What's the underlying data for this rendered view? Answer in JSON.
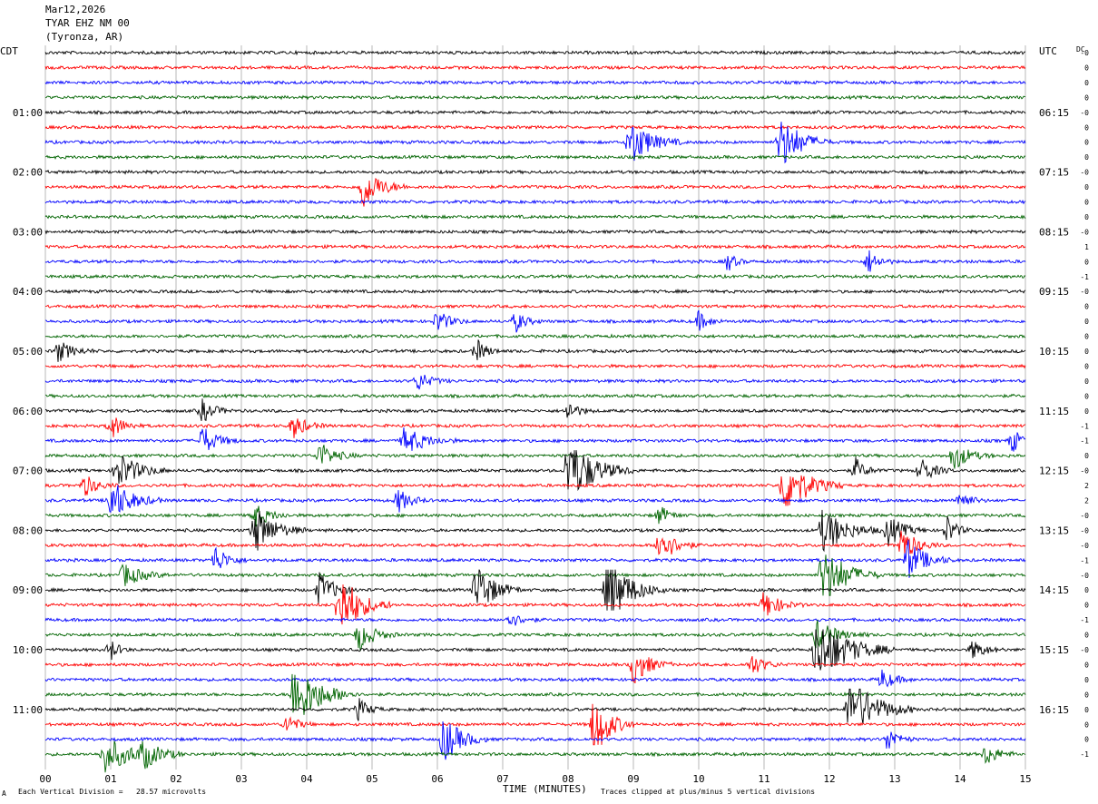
{
  "header": {
    "date": "Mar12,2026",
    "station": "TYAR EHZ NM 00",
    "location": "(Tyronza, AR)"
  },
  "left_timezone": "CDT",
  "right_timezone": "UTC",
  "dc_label": "DC",
  "footer": {
    "scale_note": "Each Vertical Division =   28.57 microvolts",
    "x_axis_title": "TIME (MINUTES)",
    "clip_note": "Traces clipped at plus/minus 5 vertical divisions",
    "corner_mark": "A"
  },
  "colors": {
    "trace_cycle": [
      "#000000",
      "#ff0000",
      "#0000ff",
      "#006400"
    ],
    "grid": "#888888",
    "background": "#ffffff"
  },
  "chart_data": {
    "type": "line",
    "title": "TYAR EHZ NM 00 (Tyronza, AR)",
    "xlabel": "TIME (MINUTES)",
    "xlim": [
      0,
      15
    ],
    "x_ticks": [
      "00",
      "01",
      "02",
      "03",
      "04",
      "05",
      "06",
      "07",
      "08",
      "09",
      "10",
      "11",
      "12",
      "13",
      "14",
      "15"
    ],
    "rows": 48,
    "row_duration_minutes": 15,
    "left_labels": [
      {
        "row": 4,
        "text": "01:00"
      },
      {
        "row": 8,
        "text": "02:00"
      },
      {
        "row": 12,
        "text": "03:00"
      },
      {
        "row": 16,
        "text": "04:00"
      },
      {
        "row": 20,
        "text": "05:00"
      },
      {
        "row": 24,
        "text": "06:00"
      },
      {
        "row": 28,
        "text": "07:00"
      },
      {
        "row": 32,
        "text": "08:00"
      },
      {
        "row": 36,
        "text": "09:00"
      },
      {
        "row": 40,
        "text": "10:00"
      },
      {
        "row": 44,
        "text": "11:00"
      }
    ],
    "right_labels": [
      {
        "row": 4,
        "text": "06:15"
      },
      {
        "row": 8,
        "text": "07:15"
      },
      {
        "row": 12,
        "text": "08:15"
      },
      {
        "row": 16,
        "text": "09:15"
      },
      {
        "row": 20,
        "text": "10:15"
      },
      {
        "row": 24,
        "text": "11:15"
      },
      {
        "row": 28,
        "text": "12:15"
      },
      {
        "row": 32,
        "text": "13:15"
      },
      {
        "row": 36,
        "text": "14:15"
      },
      {
        "row": 40,
        "text": "15:15"
      },
      {
        "row": 44,
        "text": "16:15"
      }
    ],
    "dc_offsets": [
      "-0",
      "0",
      "0",
      "0",
      "-0",
      "0",
      "0",
      "0",
      "-0",
      "0",
      "0",
      "0",
      "-0",
      "1",
      "0",
      "-1",
      "-0",
      "0",
      "0",
      "0",
      "0",
      "0",
      "0",
      "0",
      "0",
      "-1",
      "-1",
      "0",
      "-0",
      "2",
      "2",
      "-0",
      "-0",
      "-0",
      "-1",
      "-0",
      "0",
      "0",
      "-1",
      "0",
      "-0",
      "0",
      "0",
      "0",
      "0",
      "0",
      "0",
      "-1"
    ],
    "events": [
      {
        "row": 6,
        "minute": 8.95,
        "amp": 3.0,
        "dur": 0.8
      },
      {
        "row": 6,
        "minute": 11.25,
        "amp": 3.5,
        "dur": 0.8
      },
      {
        "row": 9,
        "minute": 4.85,
        "amp": 2.8,
        "dur": 0.7
      },
      {
        "row": 14,
        "minute": 10.45,
        "amp": 1.2,
        "dur": 0.3
      },
      {
        "row": 14,
        "minute": 12.6,
        "amp": 1.5,
        "dur": 0.4
      },
      {
        "row": 18,
        "minute": 6.0,
        "amp": 1.4,
        "dur": 0.5
      },
      {
        "row": 18,
        "minute": 7.2,
        "amp": 1.3,
        "dur": 0.4
      },
      {
        "row": 18,
        "minute": 10.0,
        "amp": 1.2,
        "dur": 0.4
      },
      {
        "row": 20,
        "minute": 0.2,
        "amp": 1.3,
        "dur": 0.6
      },
      {
        "row": 20,
        "minute": 6.6,
        "amp": 1.5,
        "dur": 0.4
      },
      {
        "row": 22,
        "minute": 5.7,
        "amp": 1.2,
        "dur": 0.5
      },
      {
        "row": 24,
        "minute": 2.4,
        "amp": 1.4,
        "dur": 0.5
      },
      {
        "row": 24,
        "minute": 8.0,
        "amp": 1.3,
        "dur": 0.4
      },
      {
        "row": 25,
        "minute": 1.0,
        "amp": 1.6,
        "dur": 0.5
      },
      {
        "row": 25,
        "minute": 3.8,
        "amp": 1.5,
        "dur": 0.5
      },
      {
        "row": 26,
        "minute": 2.4,
        "amp": 1.8,
        "dur": 0.6
      },
      {
        "row": 26,
        "minute": 5.5,
        "amp": 1.8,
        "dur": 0.8
      },
      {
        "row": 26,
        "minute": 14.8,
        "amp": 1.4,
        "dur": 0.5
      },
      {
        "row": 27,
        "minute": 4.2,
        "amp": 1.6,
        "dur": 0.6
      },
      {
        "row": 27,
        "minute": 13.9,
        "amp": 1.8,
        "dur": 0.6
      },
      {
        "row": 28,
        "minute": 1.1,
        "amp": 2.5,
        "dur": 0.8
      },
      {
        "row": 28,
        "minute": 8.0,
        "amp": 4.5,
        "dur": 1.0
      },
      {
        "row": 28,
        "minute": 12.4,
        "amp": 1.5,
        "dur": 0.4
      },
      {
        "row": 28,
        "minute": 13.4,
        "amp": 1.7,
        "dur": 0.5
      },
      {
        "row": 29,
        "minute": 0.6,
        "amp": 1.4,
        "dur": 0.5
      },
      {
        "row": 29,
        "minute": 11.3,
        "amp": 4.0,
        "dur": 0.9
      },
      {
        "row": 30,
        "minute": 1.0,
        "amp": 2.8,
        "dur": 0.8
      },
      {
        "row": 30,
        "minute": 5.4,
        "amp": 1.5,
        "dur": 0.5
      },
      {
        "row": 30,
        "minute": 14.0,
        "amp": 1.3,
        "dur": 0.4
      },
      {
        "row": 31,
        "minute": 3.2,
        "amp": 1.5,
        "dur": 0.6
      },
      {
        "row": 31,
        "minute": 9.4,
        "amp": 1.2,
        "dur": 0.4
      },
      {
        "row": 32,
        "minute": 3.2,
        "amp": 3.0,
        "dur": 0.8
      },
      {
        "row": 32,
        "minute": 11.9,
        "amp": 3.0,
        "dur": 0.9
      },
      {
        "row": 32,
        "minute": 12.9,
        "amp": 2.0,
        "dur": 0.6
      },
      {
        "row": 32,
        "minute": 13.8,
        "amp": 1.8,
        "dur": 0.4
      },
      {
        "row": 33,
        "minute": 9.4,
        "amp": 2.5,
        "dur": 0.6
      },
      {
        "row": 33,
        "minute": 13.1,
        "amp": 2.2,
        "dur": 0.6
      },
      {
        "row": 34,
        "minute": 2.6,
        "amp": 1.8,
        "dur": 0.5
      },
      {
        "row": 34,
        "minute": 13.2,
        "amp": 2.6,
        "dur": 0.7
      },
      {
        "row": 35,
        "minute": 1.2,
        "amp": 1.5,
        "dur": 0.7
      },
      {
        "row": 35,
        "minute": 11.9,
        "amp": 4.0,
        "dur": 0.9
      },
      {
        "row": 36,
        "minute": 4.2,
        "amp": 2.2,
        "dur": 0.6
      },
      {
        "row": 36,
        "minute": 6.6,
        "amp": 3.5,
        "dur": 0.7
      },
      {
        "row": 36,
        "minute": 8.6,
        "amp": 4.5,
        "dur": 0.9
      },
      {
        "row": 37,
        "minute": 4.5,
        "amp": 4.5,
        "dur": 0.8
      },
      {
        "row": 37,
        "minute": 11.0,
        "amp": 1.8,
        "dur": 0.6
      },
      {
        "row": 38,
        "minute": 7.1,
        "amp": 1.0,
        "dur": 0.5
      },
      {
        "row": 39,
        "minute": 4.8,
        "amp": 2.0,
        "dur": 0.6
      },
      {
        "row": 39,
        "minute": 11.8,
        "amp": 1.8,
        "dur": 0.8
      },
      {
        "row": 40,
        "minute": 1.0,
        "amp": 1.4,
        "dur": 0.3
      },
      {
        "row": 40,
        "minute": 11.8,
        "amp": 4.5,
        "dur": 1.2
      },
      {
        "row": 40,
        "minute": 14.2,
        "amp": 1.2,
        "dur": 0.5
      },
      {
        "row": 41,
        "minute": 9.0,
        "amp": 2.5,
        "dur": 0.6
      },
      {
        "row": 41,
        "minute": 10.8,
        "amp": 1.4,
        "dur": 0.5
      },
      {
        "row": 42,
        "minute": 12.8,
        "amp": 1.3,
        "dur": 0.5
      },
      {
        "row": 43,
        "minute": 3.8,
        "amp": 4.5,
        "dur": 1.0
      },
      {
        "row": 44,
        "minute": 4.8,
        "amp": 1.4,
        "dur": 0.4
      },
      {
        "row": 44,
        "minute": 12.3,
        "amp": 4.5,
        "dur": 1.0
      },
      {
        "row": 45,
        "minute": 8.4,
        "amp": 4.5,
        "dur": 0.6
      },
      {
        "row": 45,
        "minute": 3.7,
        "amp": 1.4,
        "dur": 0.4
      },
      {
        "row": 46,
        "minute": 6.1,
        "amp": 3.0,
        "dur": 0.7
      },
      {
        "row": 46,
        "minute": 12.9,
        "amp": 1.6,
        "dur": 0.4
      },
      {
        "row": 47,
        "minute": 0.9,
        "amp": 2.2,
        "dur": 1.2
      },
      {
        "row": 47,
        "minute": 1.5,
        "amp": 1.5,
        "dur": 0.6
      },
      {
        "row": 47,
        "minute": 14.4,
        "amp": 1.4,
        "dur": 0.5
      }
    ]
  }
}
